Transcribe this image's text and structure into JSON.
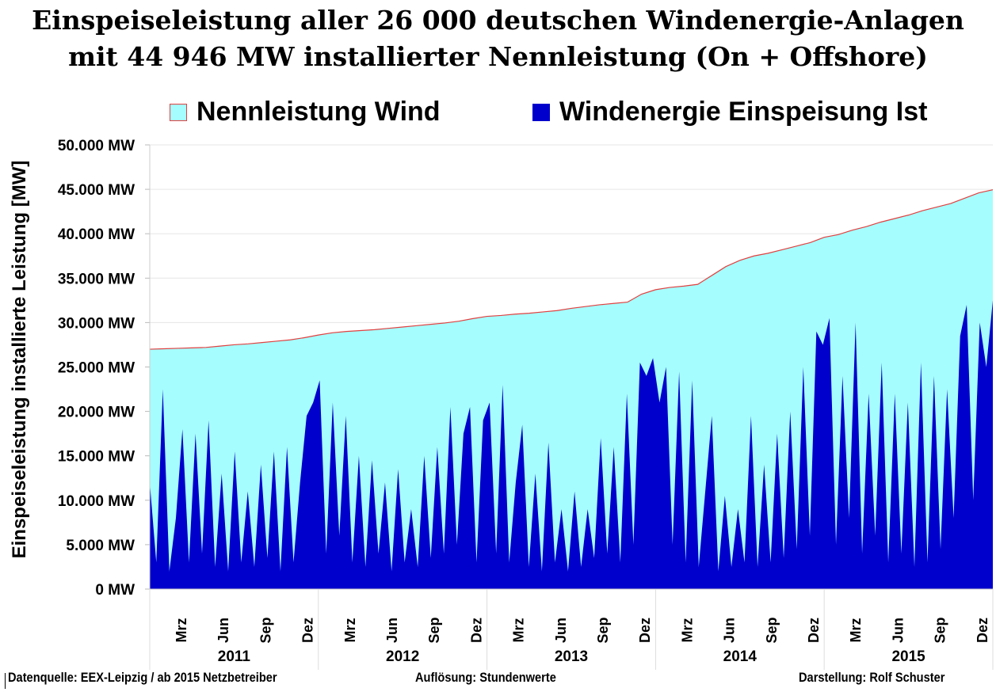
{
  "title_line1": "Einspeiseleistung aller 26 000 deutschen Windenergie-Anlagen",
  "title_line2": "mit  44 946 MW installierter Nennleistung (On + Offshore)",
  "footer": {
    "source": "Datenquelle:  EEX-Leipzig  /  ab 2015 Netzbetreiber",
    "resolution": "Auflösung: Stundenwerte",
    "author": "Darstellung: Rolf Schuster"
  },
  "colors": {
    "capacity_fill": "#a6fdfd",
    "capacity_line": "#e04040",
    "generation": "#0000cc",
    "grid": "#e6e6e6"
  },
  "chart_data": {
    "type": "area",
    "ylabel": "Einspeiseleistung installierte Leistung [MW]",
    "ylim": [
      0,
      50000
    ],
    "yticks": [
      0,
      5000,
      10000,
      15000,
      20000,
      25000,
      30000,
      35000,
      40000,
      45000,
      50000
    ],
    "ytick_labels": [
      "0 MW",
      "5.000 MW",
      "10.000 MW",
      "15.000 MW",
      "20.000 MW",
      "25.000 MW",
      "30.000 MW",
      "35.000 MW",
      "40.000 MW",
      "45.000 MW",
      "50.000 MW"
    ],
    "years": [
      "2011",
      "2012",
      "2013",
      "2014",
      "2015"
    ],
    "month_labels": [
      {
        "month": 2,
        "label": "Mrz"
      },
      {
        "month": 5,
        "label": "Jun"
      },
      {
        "month": 8,
        "label": "Sep"
      },
      {
        "month": 11,
        "label": "Dez"
      }
    ],
    "grid": true,
    "legend_position": "top",
    "series": [
      {
        "name": "Nennleistung Wind",
        "type": "area-line",
        "x_unit": "month",
        "values": [
          27000,
          27050,
          27100,
          27150,
          27200,
          27350,
          27500,
          27600,
          27750,
          27900,
          28050,
          28300,
          28600,
          28850,
          29000,
          29100,
          29200,
          29350,
          29500,
          29650,
          29800,
          29950,
          30150,
          30450,
          30700,
          30800,
          30950,
          31050,
          31200,
          31350,
          31600,
          31800,
          32000,
          32150,
          32300,
          33200,
          33700,
          33950,
          34100,
          34300,
          35300,
          36300,
          37000,
          37500,
          37800,
          38200,
          38600,
          39000,
          39600,
          39900,
          40400,
          40800,
          41300,
          41700,
          42100,
          42600,
          43000,
          43400,
          44000,
          44600,
          44946
        ]
      },
      {
        "name": "Windenergie Einspeisung Ist",
        "type": "area",
        "x_unit": "half-month",
        "values": [
          12000,
          3000,
          22500,
          2000,
          8000,
          18000,
          3000,
          17500,
          4000,
          19000,
          2500,
          13000,
          2000,
          15500,
          3000,
          11000,
          2500,
          14000,
          3500,
          15500,
          2000,
          16000,
          3000,
          12000,
          19500,
          21000,
          23500,
          4000,
          21000,
          6000,
          19500,
          3000,
          15000,
          2500,
          14500,
          4000,
          12000,
          2000,
          13500,
          3000,
          9000,
          2500,
          15000,
          3500,
          16000,
          4000,
          20500,
          5000,
          17500,
          20500,
          3000,
          19000,
          21000,
          4000,
          23000,
          3000,
          12000,
          18500,
          2500,
          13000,
          2000,
          16500,
          3000,
          9000,
          2000,
          11000,
          2500,
          9000,
          3500,
          17000,
          4000,
          16000,
          3000,
          22000,
          5000,
          25500,
          24000,
          26000,
          21000,
          25000,
          5000,
          24500,
          3000,
          23500,
          2500,
          11000,
          19500,
          2000,
          10500,
          2500,
          9000,
          3000,
          19500,
          2500,
          14000,
          3000,
          17500,
          3500,
          20000,
          4500,
          25000,
          6000,
          29000,
          27500,
          30500,
          5000,
          24000,
          8000,
          30000,
          4000,
          22000,
          6000,
          25500,
          3000,
          22000,
          4000,
          21000,
          2500,
          25500,
          3000,
          24000,
          4500,
          22500,
          8000,
          28500,
          32000,
          10000,
          30000,
          25000,
          32500
        ]
      }
    ]
  }
}
